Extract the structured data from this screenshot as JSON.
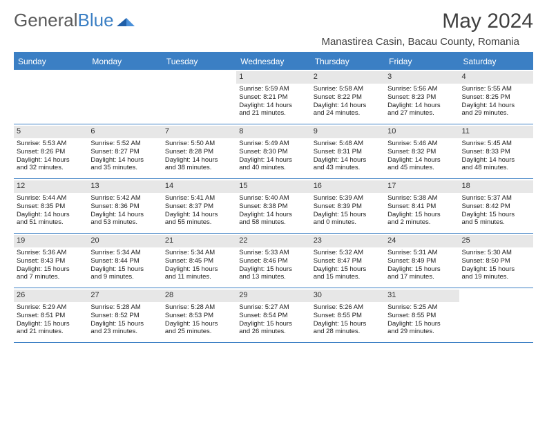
{
  "brand": {
    "part1": "General",
    "part2": "Blue"
  },
  "title": "May 2024",
  "location": "Manastirea Casin, Bacau County, Romania",
  "colors": {
    "accent": "#3b7fc4",
    "daynum_bg": "#e7e7e7",
    "text": "#202020",
    "header_text": "#404040"
  },
  "weekdays": [
    "Sunday",
    "Monday",
    "Tuesday",
    "Wednesday",
    "Thursday",
    "Friday",
    "Saturday"
  ],
  "weeks": [
    [
      {
        "n": "",
        "sr": "",
        "ss": "",
        "dl1": "",
        "dl2": ""
      },
      {
        "n": "",
        "sr": "",
        "ss": "",
        "dl1": "",
        "dl2": ""
      },
      {
        "n": "",
        "sr": "",
        "ss": "",
        "dl1": "",
        "dl2": ""
      },
      {
        "n": "1",
        "sr": "Sunrise: 5:59 AM",
        "ss": "Sunset: 8:21 PM",
        "dl1": "Daylight: 14 hours",
        "dl2": "and 21 minutes."
      },
      {
        "n": "2",
        "sr": "Sunrise: 5:58 AM",
        "ss": "Sunset: 8:22 PM",
        "dl1": "Daylight: 14 hours",
        "dl2": "and 24 minutes."
      },
      {
        "n": "3",
        "sr": "Sunrise: 5:56 AM",
        "ss": "Sunset: 8:23 PM",
        "dl1": "Daylight: 14 hours",
        "dl2": "and 27 minutes."
      },
      {
        "n": "4",
        "sr": "Sunrise: 5:55 AM",
        "ss": "Sunset: 8:25 PM",
        "dl1": "Daylight: 14 hours",
        "dl2": "and 29 minutes."
      }
    ],
    [
      {
        "n": "5",
        "sr": "Sunrise: 5:53 AM",
        "ss": "Sunset: 8:26 PM",
        "dl1": "Daylight: 14 hours",
        "dl2": "and 32 minutes."
      },
      {
        "n": "6",
        "sr": "Sunrise: 5:52 AM",
        "ss": "Sunset: 8:27 PM",
        "dl1": "Daylight: 14 hours",
        "dl2": "and 35 minutes."
      },
      {
        "n": "7",
        "sr": "Sunrise: 5:50 AM",
        "ss": "Sunset: 8:28 PM",
        "dl1": "Daylight: 14 hours",
        "dl2": "and 38 minutes."
      },
      {
        "n": "8",
        "sr": "Sunrise: 5:49 AM",
        "ss": "Sunset: 8:30 PM",
        "dl1": "Daylight: 14 hours",
        "dl2": "and 40 minutes."
      },
      {
        "n": "9",
        "sr": "Sunrise: 5:48 AM",
        "ss": "Sunset: 8:31 PM",
        "dl1": "Daylight: 14 hours",
        "dl2": "and 43 minutes."
      },
      {
        "n": "10",
        "sr": "Sunrise: 5:46 AM",
        "ss": "Sunset: 8:32 PM",
        "dl1": "Daylight: 14 hours",
        "dl2": "and 45 minutes."
      },
      {
        "n": "11",
        "sr": "Sunrise: 5:45 AM",
        "ss": "Sunset: 8:33 PM",
        "dl1": "Daylight: 14 hours",
        "dl2": "and 48 minutes."
      }
    ],
    [
      {
        "n": "12",
        "sr": "Sunrise: 5:44 AM",
        "ss": "Sunset: 8:35 PM",
        "dl1": "Daylight: 14 hours",
        "dl2": "and 51 minutes."
      },
      {
        "n": "13",
        "sr": "Sunrise: 5:42 AM",
        "ss": "Sunset: 8:36 PM",
        "dl1": "Daylight: 14 hours",
        "dl2": "and 53 minutes."
      },
      {
        "n": "14",
        "sr": "Sunrise: 5:41 AM",
        "ss": "Sunset: 8:37 PM",
        "dl1": "Daylight: 14 hours",
        "dl2": "and 55 minutes."
      },
      {
        "n": "15",
        "sr": "Sunrise: 5:40 AM",
        "ss": "Sunset: 8:38 PM",
        "dl1": "Daylight: 14 hours",
        "dl2": "and 58 minutes."
      },
      {
        "n": "16",
        "sr": "Sunrise: 5:39 AM",
        "ss": "Sunset: 8:39 PM",
        "dl1": "Daylight: 15 hours",
        "dl2": "and 0 minutes."
      },
      {
        "n": "17",
        "sr": "Sunrise: 5:38 AM",
        "ss": "Sunset: 8:41 PM",
        "dl1": "Daylight: 15 hours",
        "dl2": "and 2 minutes."
      },
      {
        "n": "18",
        "sr": "Sunrise: 5:37 AM",
        "ss": "Sunset: 8:42 PM",
        "dl1": "Daylight: 15 hours",
        "dl2": "and 5 minutes."
      }
    ],
    [
      {
        "n": "19",
        "sr": "Sunrise: 5:36 AM",
        "ss": "Sunset: 8:43 PM",
        "dl1": "Daylight: 15 hours",
        "dl2": "and 7 minutes."
      },
      {
        "n": "20",
        "sr": "Sunrise: 5:34 AM",
        "ss": "Sunset: 8:44 PM",
        "dl1": "Daylight: 15 hours",
        "dl2": "and 9 minutes."
      },
      {
        "n": "21",
        "sr": "Sunrise: 5:34 AM",
        "ss": "Sunset: 8:45 PM",
        "dl1": "Daylight: 15 hours",
        "dl2": "and 11 minutes."
      },
      {
        "n": "22",
        "sr": "Sunrise: 5:33 AM",
        "ss": "Sunset: 8:46 PM",
        "dl1": "Daylight: 15 hours",
        "dl2": "and 13 minutes."
      },
      {
        "n": "23",
        "sr": "Sunrise: 5:32 AM",
        "ss": "Sunset: 8:47 PM",
        "dl1": "Daylight: 15 hours",
        "dl2": "and 15 minutes."
      },
      {
        "n": "24",
        "sr": "Sunrise: 5:31 AM",
        "ss": "Sunset: 8:49 PM",
        "dl1": "Daylight: 15 hours",
        "dl2": "and 17 minutes."
      },
      {
        "n": "25",
        "sr": "Sunrise: 5:30 AM",
        "ss": "Sunset: 8:50 PM",
        "dl1": "Daylight: 15 hours",
        "dl2": "and 19 minutes."
      }
    ],
    [
      {
        "n": "26",
        "sr": "Sunrise: 5:29 AM",
        "ss": "Sunset: 8:51 PM",
        "dl1": "Daylight: 15 hours",
        "dl2": "and 21 minutes."
      },
      {
        "n": "27",
        "sr": "Sunrise: 5:28 AM",
        "ss": "Sunset: 8:52 PM",
        "dl1": "Daylight: 15 hours",
        "dl2": "and 23 minutes."
      },
      {
        "n": "28",
        "sr": "Sunrise: 5:28 AM",
        "ss": "Sunset: 8:53 PM",
        "dl1": "Daylight: 15 hours",
        "dl2": "and 25 minutes."
      },
      {
        "n": "29",
        "sr": "Sunrise: 5:27 AM",
        "ss": "Sunset: 8:54 PM",
        "dl1": "Daylight: 15 hours",
        "dl2": "and 26 minutes."
      },
      {
        "n": "30",
        "sr": "Sunrise: 5:26 AM",
        "ss": "Sunset: 8:55 PM",
        "dl1": "Daylight: 15 hours",
        "dl2": "and 28 minutes."
      },
      {
        "n": "31",
        "sr": "Sunrise: 5:25 AM",
        "ss": "Sunset: 8:55 PM",
        "dl1": "Daylight: 15 hours",
        "dl2": "and 29 minutes."
      },
      {
        "n": "",
        "sr": "",
        "ss": "",
        "dl1": "",
        "dl2": ""
      }
    ]
  ]
}
